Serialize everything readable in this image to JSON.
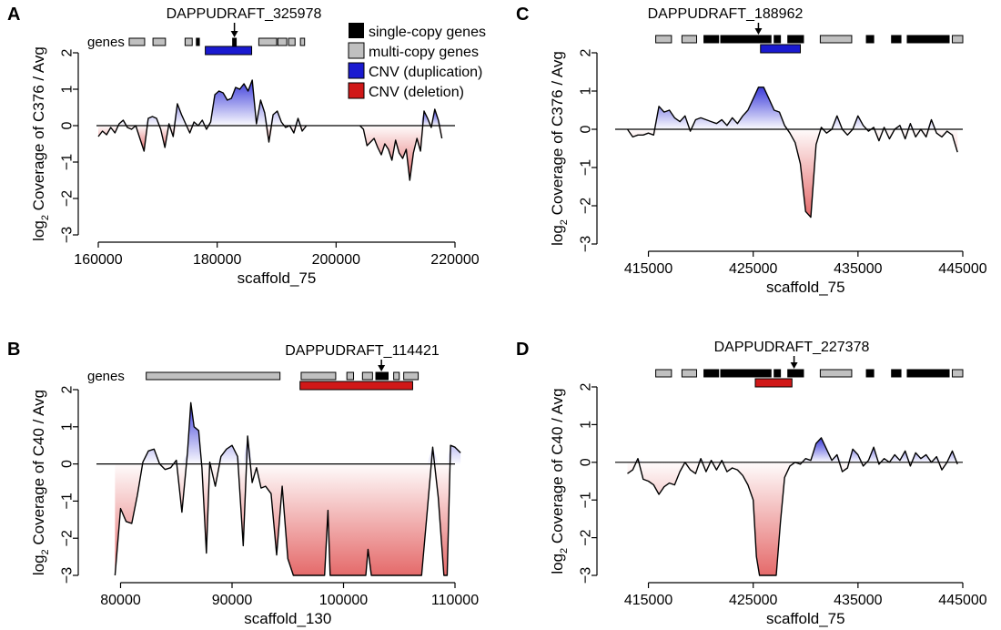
{
  "legend": {
    "items": [
      {
        "label": "single-copy genes",
        "color": "#000000"
      },
      {
        "label": "multi-copy genes",
        "color": "#c0c0c0"
      },
      {
        "label": "CNV (duplication)",
        "color": "#1010c8"
      },
      {
        "label": "CNV (deletion)",
        "color": "#c81010"
      }
    ]
  },
  "colors": {
    "single_copy": "#000000",
    "multi_copy": "#c0c0c0",
    "duplication": "#1a1ad0",
    "deletion": "#d01818",
    "pos_fill_top": "#3838d8",
    "neg_fill_bottom": "#e07070"
  },
  "chart_data": [
    {
      "type": "area",
      "panel_letter": "A",
      "gene_label": "DAPPUDRAFT_325978",
      "genes_label": "genes",
      "xlabel": "scaffold_75",
      "ylabel_prefix": "log",
      "ylabel_sub": "2",
      "ylabel_rest": " Coverage of C376 / Avg",
      "xlim": [
        160000,
        220000
      ],
      "ylim": [
        -3,
        2
      ],
      "xticks": [
        160000,
        180000,
        200000,
        220000
      ],
      "xtick_labels": [
        "160000",
        "180000",
        "200000",
        "220000"
      ],
      "yticks": [
        -3,
        -2,
        -1,
        0,
        1,
        2
      ],
      "ytick_labels": [
        "−3",
        "−2",
        "−1",
        "0",
        "1",
        "2"
      ],
      "genes": [
        {
          "start": 165200,
          "end": 167800,
          "kind": "multi"
        },
        {
          "start": 169200,
          "end": 171300,
          "kind": "multi"
        },
        {
          "start": 174600,
          "end": 175800,
          "kind": "multi"
        },
        {
          "start": 176500,
          "end": 177000,
          "kind": "single"
        },
        {
          "start": 182600,
          "end": 183200,
          "kind": "single"
        },
        {
          "start": 187000,
          "end": 190000,
          "kind": "multi"
        },
        {
          "start": 190200,
          "end": 191700,
          "kind": "multi"
        },
        {
          "start": 192000,
          "end": 193100,
          "kind": "multi"
        },
        {
          "start": 194000,
          "end": 194700,
          "kind": "multi"
        }
      ],
      "cnv": {
        "kind": "duplication",
        "start": 178000,
        "end": 185800
      },
      "arrow_x": 182900,
      "x": [
        160000,
        160700,
        161400,
        162100,
        162800,
        163500,
        164200,
        164900,
        165600,
        166300,
        167000,
        167700,
        168400,
        169100,
        169800,
        170500,
        171200,
        171900,
        172600,
        173300,
        174000,
        174700,
        175400,
        176100,
        176800,
        177500,
        178200,
        178900,
        179600,
        180300,
        181000,
        181700,
        182400,
        183100,
        183800,
        184500,
        185200,
        185900,
        186600,
        187300,
        188000,
        188700,
        189400,
        190100,
        190800,
        191500,
        192200,
        192900,
        193600,
        194300,
        195000,
        204000,
        204600,
        205200,
        205800,
        206400,
        207000,
        207600,
        208200,
        208800,
        209400,
        210000,
        210600,
        211200,
        211800,
        212400,
        213000,
        213600,
        214200,
        214800,
        215400,
        216000,
        216600,
        217200,
        217800
      ],
      "y": [
        -0.3,
        -0.15,
        -0.25,
        -0.05,
        -0.2,
        0.05,
        0.15,
        -0.05,
        -0.1,
        0.0,
        -0.35,
        -0.7,
        0.2,
        0.25,
        0.2,
        -0.1,
        -0.6,
        0.05,
        -0.3,
        0.6,
        0.3,
        0.05,
        -0.2,
        0.1,
        0.0,
        0.15,
        -0.1,
        0.1,
        0.85,
        0.95,
        0.9,
        0.7,
        0.75,
        1.05,
        1.0,
        1.15,
        0.95,
        1.25,
        0.05,
        0.7,
        0.35,
        -0.45,
        0.3,
        0.4,
        0.1,
        -0.05,
        0.0,
        -0.2,
        0.2,
        -0.15,
        0.0,
        0.0,
        -0.1,
        -0.55,
        -0.45,
        -0.35,
        -0.6,
        -0.8,
        -0.5,
        -0.65,
        -0.95,
        -0.4,
        -0.75,
        -0.9,
        -0.65,
        -1.5,
        -0.75,
        -0.35,
        -0.7,
        0.4,
        0.2,
        -0.05,
        0.45,
        0.15,
        -0.35
      ],
      "gaps_after": [
        50
      ]
    },
    {
      "type": "area",
      "panel_letter": "B",
      "gene_label": "DAPPUDRAFT_114421",
      "genes_label": "genes",
      "xlabel": "scaffold_130",
      "ylabel_prefix": "log",
      "ylabel_sub": "2",
      "ylabel_rest": " Coverage of C40 / Avg",
      "xlim": [
        78000,
        110000
      ],
      "ylim": [
        -3,
        2
      ],
      "xticks": [
        80000,
        90000,
        100000,
        110000
      ],
      "xtick_labels": [
        "80000",
        "90000",
        "100000",
        "110000"
      ],
      "yticks": [
        -3,
        -2,
        -1,
        0,
        1,
        2
      ],
      "ytick_labels": [
        "−3",
        "−2",
        "−1",
        "0",
        "1",
        "2"
      ],
      "genes": [
        {
          "start": 82300,
          "end": 94300,
          "kind": "multi"
        },
        {
          "start": 96200,
          "end": 99300,
          "kind": "multi"
        },
        {
          "start": 100300,
          "end": 100900,
          "kind": "multi"
        },
        {
          "start": 101700,
          "end": 102600,
          "kind": "multi"
        },
        {
          "start": 102900,
          "end": 104000,
          "kind": "single"
        },
        {
          "start": 104500,
          "end": 105000,
          "kind": "multi"
        },
        {
          "start": 105400,
          "end": 106700,
          "kind": "multi"
        }
      ],
      "cnv": {
        "kind": "deletion",
        "start": 96100,
        "end": 106200
      },
      "arrow_x": 103400,
      "x": [
        79500,
        80000,
        80500,
        81000,
        81500,
        82000,
        82500,
        83000,
        83500,
        84000,
        84500,
        85000,
        85500,
        86000,
        86300,
        86600,
        87000,
        87300,
        87700,
        88000,
        88500,
        89000,
        89500,
        90000,
        90500,
        91000,
        91400,
        91800,
        92200,
        92600,
        93000,
        93500,
        94000,
        94500,
        95000,
        95500,
        96000,
        96500,
        97000,
        97500,
        98000,
        98300,
        98600,
        98800,
        99000,
        99500,
        100000,
        100500,
        101000,
        101500,
        101800,
        102000,
        102200,
        102500,
        103000,
        103300,
        103600,
        104000,
        104500,
        105000,
        105500,
        106000,
        106400,
        106700,
        107000,
        107500,
        108000,
        108500,
        109000,
        109300,
        109600,
        110000,
        110500
      ],
      "y": [
        -3.0,
        -1.2,
        -1.55,
        -1.6,
        -0.85,
        0.05,
        0.35,
        0.4,
        0.0,
        -0.15,
        -0.1,
        0.1,
        -1.3,
        0.3,
        1.65,
        1.0,
        0.9,
        -0.1,
        -2.4,
        0.05,
        -0.6,
        0.2,
        0.4,
        0.5,
        0.2,
        -2.2,
        0.75,
        -0.5,
        -0.1,
        -0.65,
        -0.6,
        -0.8,
        -2.45,
        -0.6,
        -2.55,
        -3.0,
        -3.0,
        -3.0,
        -3.0,
        -3.0,
        -3.0,
        -3.0,
        -1.25,
        -3.0,
        -3.0,
        -3.0,
        -3.0,
        -3.0,
        -3.0,
        -3.0,
        -3.0,
        -3.0,
        -2.3,
        -3.0,
        -3.0,
        -3.0,
        -3.0,
        -3.0,
        -3.0,
        -3.0,
        -3.0,
        -3.0,
        -3.0,
        -3.0,
        -3.0,
        -1.3,
        0.45,
        -0.9,
        -3.0,
        -3.0,
        0.5,
        0.45,
        0.3
      ],
      "gaps_after": []
    },
    {
      "type": "area",
      "panel_letter": "C",
      "gene_label": "DAPPUDRAFT_188962",
      "genes_label": "",
      "xlabel": "scaffold_75",
      "ylabel_prefix": "log",
      "ylabel_sub": "2",
      "ylabel_rest": " Coverage of C376 / Avg",
      "xlim": [
        412000,
        445000
      ],
      "ylim": [
        -3,
        2
      ],
      "xticks": [
        415000,
        425000,
        435000,
        445000
      ],
      "xtick_labels": [
        "415000",
        "425000",
        "435000",
        "445000"
      ],
      "yticks": [
        -3,
        -2,
        -1,
        0,
        1,
        2
      ],
      "ytick_labels": [
        "−3",
        "−2",
        "−1",
        "0",
        "1",
        "2"
      ],
      "genes": [
        {
          "start": 415700,
          "end": 417200,
          "kind": "multi"
        },
        {
          "start": 418200,
          "end": 419600,
          "kind": "multi"
        },
        {
          "start": 420300,
          "end": 421700,
          "kind": "single"
        },
        {
          "start": 421900,
          "end": 426700,
          "kind": "single"
        },
        {
          "start": 427000,
          "end": 427600,
          "kind": "single"
        },
        {
          "start": 428300,
          "end": 429800,
          "kind": "single"
        },
        {
          "start": 431400,
          "end": 434400,
          "kind": "multi"
        },
        {
          "start": 435800,
          "end": 436500,
          "kind": "single"
        },
        {
          "start": 438200,
          "end": 439100,
          "kind": "single"
        },
        {
          "start": 439700,
          "end": 443700,
          "kind": "single"
        },
        {
          "start": 444000,
          "end": 445000,
          "kind": "multi"
        }
      ],
      "cnv": {
        "kind": "duplication",
        "start": 425700,
        "end": 429500
      },
      "arrow_x": 425500,
      "x": [
        413000,
        413500,
        414000,
        414500,
        415000,
        415500,
        416000,
        416500,
        417000,
        417500,
        418000,
        418500,
        419000,
        419500,
        420000,
        420500,
        421000,
        421500,
        422000,
        422500,
        423000,
        423500,
        424000,
        424500,
        425000,
        425500,
        426000,
        426500,
        427000,
        427500,
        428000,
        428500,
        429000,
        429500,
        430000,
        430500,
        431000,
        431500,
        432000,
        432500,
        433000,
        433500,
        434000,
        434500,
        435000,
        435500,
        436000,
        436500,
        437000,
        437500,
        438000,
        438500,
        439000,
        439500,
        440000,
        440500,
        441000,
        441500,
        442000,
        442500,
        443000,
        443500,
        444000,
        444500
      ],
      "y": [
        0.0,
        -0.2,
        -0.15,
        -0.15,
        -0.1,
        -0.15,
        0.6,
        0.45,
        0.5,
        0.3,
        0.2,
        0.35,
        -0.05,
        0.25,
        0.3,
        0.25,
        0.2,
        0.15,
        0.25,
        0.1,
        0.3,
        0.15,
        0.35,
        0.5,
        0.8,
        1.1,
        1.1,
        0.8,
        0.5,
        0.45,
        0.1,
        -0.1,
        -0.35,
        -0.9,
        -2.15,
        -2.3,
        -0.4,
        0.05,
        -0.1,
        0.0,
        0.35,
        0.0,
        -0.15,
        0.0,
        0.35,
        0.1,
        -0.05,
        0.05,
        -0.3,
        0.05,
        -0.25,
        0.0,
        0.1,
        -0.25,
        0.15,
        -0.2,
        0.0,
        -0.2,
        0.25,
        -0.1,
        -0.2,
        -0.05,
        -0.15,
        -0.6
      ],
      "gaps_after": []
    },
    {
      "type": "area",
      "panel_letter": "D",
      "gene_label": "DAPPUDRAFT_227378",
      "genes_label": "",
      "xlabel": "scaffold_75",
      "ylabel_prefix": "log",
      "ylabel_sub": "2",
      "ylabel_rest": " Coverage of C40 / Avg",
      "xlim": [
        412000,
        445000
      ],
      "ylim": [
        -3,
        2
      ],
      "xticks": [
        415000,
        425000,
        435000,
        445000
      ],
      "xtick_labels": [
        "415000",
        "425000",
        "435000",
        "445000"
      ],
      "yticks": [
        -3,
        -2,
        -1,
        0,
        1,
        2
      ],
      "ytick_labels": [
        "−3",
        "−2",
        "−1",
        "0",
        "1",
        "2"
      ],
      "genes": [
        {
          "start": 415700,
          "end": 417200,
          "kind": "multi"
        },
        {
          "start": 418200,
          "end": 419600,
          "kind": "multi"
        },
        {
          "start": 420300,
          "end": 421700,
          "kind": "single"
        },
        {
          "start": 421900,
          "end": 426700,
          "kind": "single"
        },
        {
          "start": 427000,
          "end": 427600,
          "kind": "single"
        },
        {
          "start": 428300,
          "end": 429800,
          "kind": "single"
        },
        {
          "start": 431400,
          "end": 434400,
          "kind": "multi"
        },
        {
          "start": 435800,
          "end": 436500,
          "kind": "single"
        },
        {
          "start": 438200,
          "end": 439100,
          "kind": "single"
        },
        {
          "start": 439700,
          "end": 443700,
          "kind": "single"
        },
        {
          "start": 444000,
          "end": 445000,
          "kind": "multi"
        }
      ],
      "cnv": {
        "kind": "deletion",
        "start": 425200,
        "end": 428700
      },
      "arrow_x": 428900,
      "x": [
        413000,
        413500,
        414000,
        414500,
        415000,
        415500,
        416000,
        416500,
        417000,
        417500,
        418000,
        418500,
        419000,
        419500,
        420000,
        420500,
        421000,
        421500,
        422000,
        422500,
        423000,
        423500,
        424000,
        424500,
        425000,
        425300,
        425600,
        426000,
        426400,
        426800,
        427200,
        427600,
        428000,
        428500,
        429000,
        429500,
        430000,
        430500,
        431000,
        431500,
        432000,
        432500,
        433000,
        433500,
        434000,
        434500,
        435000,
        435500,
        436000,
        436500,
        437000,
        437500,
        438000,
        438500,
        439000,
        439500,
        440000,
        440500,
        441000,
        441500,
        442000,
        442500,
        443000,
        443500,
        444000,
        444500
      ],
      "y": [
        -0.3,
        -0.2,
        0.1,
        -0.45,
        -0.5,
        -0.6,
        -0.85,
        -0.65,
        -0.55,
        -0.6,
        -0.25,
        0.0,
        -0.2,
        -0.3,
        0.1,
        -0.25,
        0.05,
        -0.2,
        0.05,
        -0.25,
        -0.15,
        -0.2,
        -0.35,
        -0.6,
        -1.0,
        -2.5,
        -3.0,
        -3.0,
        -3.0,
        -3.0,
        -3.0,
        -1.6,
        -0.4,
        -0.1,
        0.0,
        -0.05,
        0.1,
        0.05,
        0.5,
        0.65,
        0.35,
        0.05,
        0.2,
        -0.25,
        -0.15,
        0.35,
        0.2,
        -0.1,
        0.05,
        0.4,
        -0.05,
        0.1,
        0.0,
        0.2,
        0.05,
        0.3,
        -0.1,
        0.25,
        0.1,
        0.2,
        0.0,
        0.15,
        -0.2,
        0.0,
        0.3,
        -0.05
      ],
      "gaps_after": []
    }
  ]
}
